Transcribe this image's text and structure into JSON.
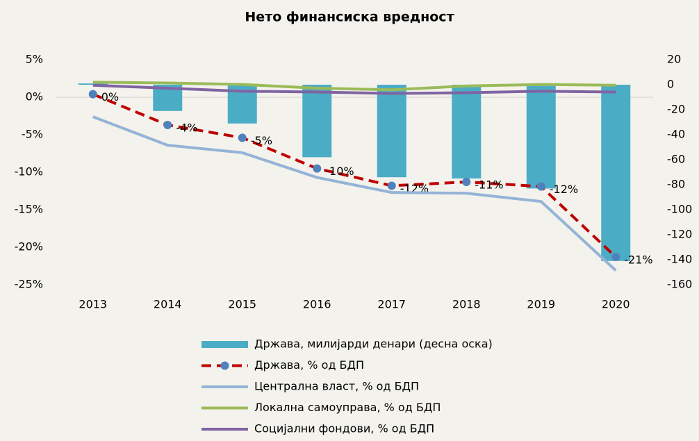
{
  "chart_data": {
    "type": "bar",
    "title": "Нето финансиска вредност",
    "categories": [
      "2013",
      "2014",
      "2015",
      "2016",
      "2017",
      "2018",
      "2019",
      "2020"
    ],
    "ylim": [
      -25,
      5
    ],
    "yticks": [
      {
        "value": 5,
        "label": "5%"
      },
      {
        "value": 0,
        "label": "0%"
      },
      {
        "value": -5,
        "label": "-5%"
      },
      {
        "value": -10,
        "label": "-10%"
      },
      {
        "value": -15,
        "label": "-15%"
      },
      {
        "value": -20,
        "label": "-20%"
      },
      {
        "value": -25,
        "label": "-25%"
      }
    ],
    "y2lim": [
      -160,
      20
    ],
    "y2ticks": [
      20,
      0,
      -20,
      -40,
      -60,
      -80,
      -100,
      -120,
      -140,
      -160
    ],
    "series": [
      {
        "name": "Држава, милијарди денари (десна оска)",
        "type": "bar",
        "axis": "y2",
        "color": "#4bacc6",
        "values": [
          1,
          -21,
          -31,
          -58,
          -74,
          -75,
          -83,
          -141
        ]
      },
      {
        "name": "Држава, % од БДП",
        "type": "line",
        "dashed": true,
        "color": "#c00000",
        "marker_color": "#4f81bd",
        "values": [
          0.4,
          -3.7,
          -5.4,
          -9.5,
          -11.8,
          -11.3,
          -11.9,
          -21.3
        ],
        "value_labels": [
          "0%",
          "-4%",
          "-5%",
          "-10%",
          "-12%",
          "-11%",
          "-12%",
          "-21%"
        ]
      },
      {
        "name": "Централна власт, % од БДП",
        "type": "line",
        "color": "#95b3d7",
        "values": [
          -2.6,
          -6.4,
          -7.4,
          -10.7,
          -12.7,
          -12.8,
          -13.9,
          -23.1
        ]
      },
      {
        "name": "Локална самоуправа, % од БДП",
        "type": "line",
        "color": "#9bbb59",
        "values": [
          2.0,
          1.9,
          1.7,
          1.2,
          1.0,
          1.5,
          1.7,
          1.6
        ]
      },
      {
        "name": "Социјални фондови, % од БДП",
        "type": "line",
        "color": "#8064a2",
        "values": [
          1.6,
          1.2,
          0.8,
          0.7,
          0.5,
          0.6,
          0.8,
          0.7
        ]
      }
    ]
  }
}
